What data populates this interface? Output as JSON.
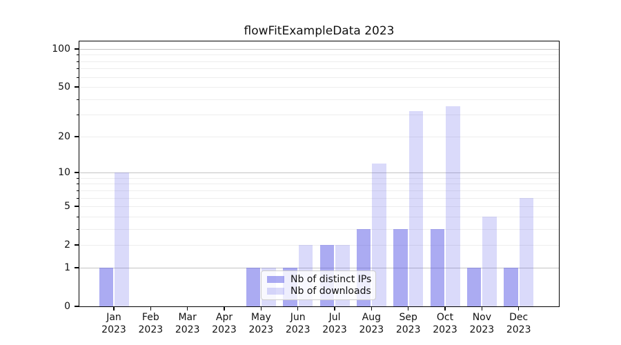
{
  "chart_data": {
    "type": "bar",
    "title": "flowFitExampleData 2023",
    "x_year": "2023",
    "categories": [
      "Jan",
      "Feb",
      "Mar",
      "Apr",
      "May",
      "Jun",
      "Jul",
      "Aug",
      "Sep",
      "Oct",
      "Nov",
      "Dec"
    ],
    "series": [
      {
        "name": "Nb of distinct IPs",
        "values": [
          1,
          0,
          0,
          0,
          1,
          1,
          2,
          3,
          3,
          3,
          1,
          1
        ],
        "color": "rgba(87,87,230,0.50)"
      },
      {
        "name": "Nb of downloads",
        "values": [
          10,
          0,
          0,
          0,
          1,
          2,
          2,
          12,
          32,
          35,
          4,
          6
        ],
        "color": "rgba(87,87,230,0.22)"
      }
    ],
    "yscale": "log1p",
    "ylim": [
      0,
      114.6
    ],
    "y_tick_labels": [
      0,
      1,
      2,
      5,
      10,
      20,
      50,
      100
    ],
    "y_major_gridlines": [
      1,
      10,
      100
    ],
    "y_minor_gridlines": [
      2,
      3,
      4,
      5,
      6,
      7,
      8,
      9,
      20,
      30,
      40,
      50,
      60,
      70,
      80,
      90
    ],
    "grid": true,
    "legend": {
      "position": "lower center"
    }
  },
  "colors": {
    "background": "#ffffff",
    "bar_distinct_ips": "#aaaaf2",
    "bar_downloads": "#dadaf9",
    "grid_major": "#c3c3c3",
    "grid_minor": "#ededed",
    "axis": "#000000",
    "legend_border": "#cccccc"
  }
}
